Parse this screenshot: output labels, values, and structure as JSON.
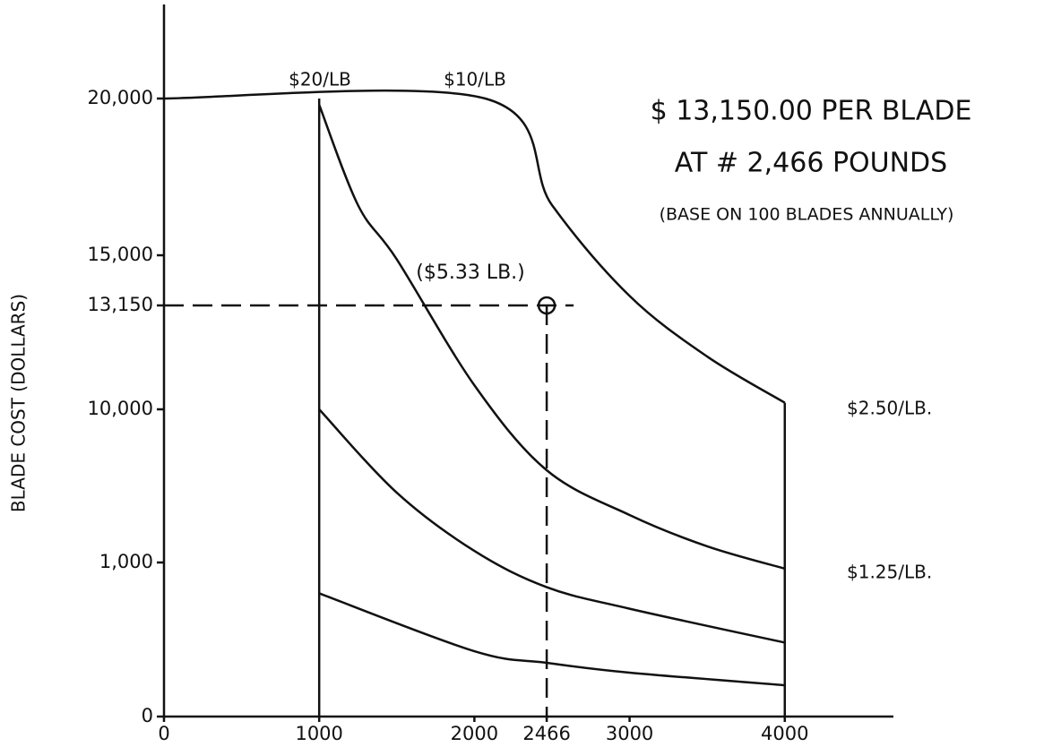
{
  "chart_data": {
    "type": "line",
    "title": "$ 13,150.00 PER BLADE",
    "subtitle": "AT # 2,466 POUNDS",
    "note": "(BASE ON 100 BLADES ANNUALLY)",
    "y_label": "BLADE COST (DOLLARS)",
    "xlim": [
      0,
      4700
    ],
    "xticks": [
      0,
      1000,
      2000,
      2466,
      3000,
      4000
    ],
    "ylim": [
      0,
      23000
    ],
    "yticks": [
      0,
      {
        "value": 1000,
        "label": "1,000"
      },
      {
        "value": 10000,
        "label": "10,000"
      },
      {
        "value": 13150,
        "label": "13,150"
      },
      {
        "value": 15000,
        "label": "15,000"
      },
      {
        "value": 20000,
        "label": "20,000"
      }
    ],
    "color": "#111111",
    "series": [
      {
        "x": [
          0,
          2070,
          2500,
          3000,
          3500,
          4000
        ],
        "values": [
          20000,
          20000,
          16600,
          13500,
          11600,
          10200
        ]
      },
      {
        "x": [
          1000,
          1250,
          1500,
          2000,
          2466,
          3000,
          3500,
          4000
        ],
        "values": [
          19800,
          16600,
          14850,
          10730,
          6420,
          3790,
          1950,
          960
        ]
      },
      {
        "x": [
          1000,
          1500,
          2000,
          2466,
          3000,
          4000
        ],
        "values": [
          10000,
          5100,
          1680,
          840,
          700,
          480
        ]
      },
      {
        "x": [
          1000,
          2000,
          2466,
          3000,
          4000
        ],
        "values": [
          800,
          424,
          349,
          285,
          203
        ]
      }
    ],
    "annotations": [
      "$20/LB",
      "$10/LB",
      "$2.50/LB.",
      "$1.25/LB."
    ],
    "marker": {
      "x": 2466,
      "y": 13150,
      "label": "($5.33 LB.)"
    }
  }
}
